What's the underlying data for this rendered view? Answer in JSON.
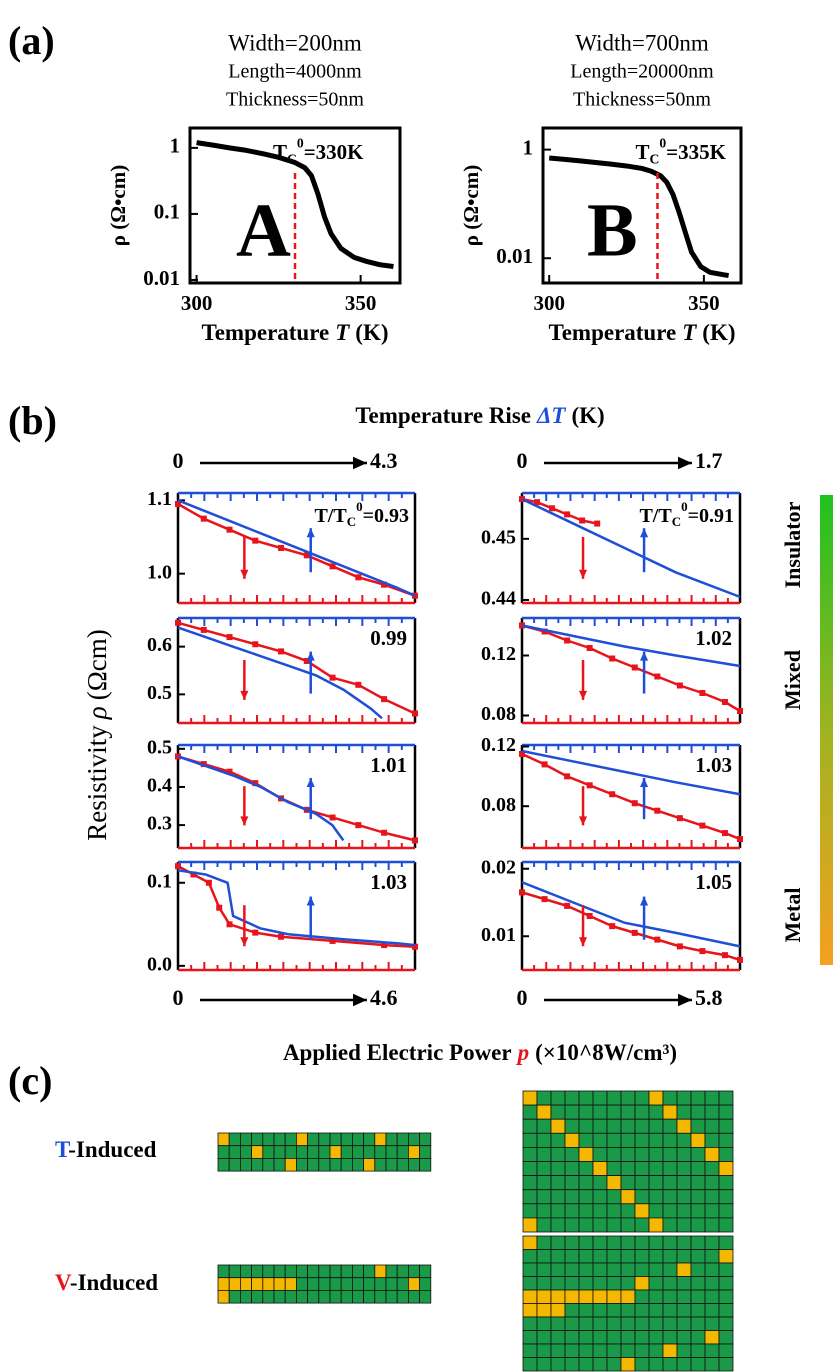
{
  "panel_labels": [
    "(a)",
    "(b)",
    "(c)"
  ],
  "panel_b": {
    "top_axis": {
      "text": "Temperature Rise",
      "symbol": "ΔT",
      "unit": "(K)"
    },
    "y_label": {
      "text": "Resistivity",
      "symbol": "ρ",
      "unit": "(Ωcm)"
    },
    "bottom_axis": {
      "text": "Applied Electric Power",
      "symbol": "p",
      "unit": "(×10^8W/cm³)"
    },
    "phases": [
      "Insulator",
      "Mixed",
      "Metal"
    ]
  },
  "panel_c": {
    "rows": [
      {
        "letter": "T",
        "rest": "-Induced"
      },
      {
        "letter": "V",
        "rest": "-Induced"
      }
    ]
  },
  "chart_data": [
    {
      "type": "line",
      "log_y": true,
      "title_lines": [
        "Width=200nm",
        "Length=4000nm",
        "Thickness=50nm"
      ],
      "x_label": {
        "text": "Temperature",
        "symbol": "T",
        "unit": "(K)"
      },
      "y_label": "ρ (Ω•cm)",
      "letter": "A",
      "vline": 330,
      "annotation": {
        "base": "T",
        "sub": "C",
        "sup": "0",
        "rest": "=330K"
      },
      "xlim": [
        298,
        362
      ],
      "xticks": [
        300,
        350
      ],
      "ylim": [
        0.009,
        2
      ],
      "yticks": [
        0.01,
        0.1,
        1
      ],
      "series": [
        {
          "color": "#000000",
          "x": [
            300,
            305,
            310,
            315,
            320,
            325,
            330,
            333,
            335,
            337,
            339,
            341,
            344,
            348,
            352,
            356,
            360
          ],
          "values": [
            1.2,
            1.1,
            1.0,
            0.92,
            0.82,
            0.72,
            0.6,
            0.5,
            0.38,
            0.2,
            0.09,
            0.05,
            0.03,
            0.022,
            0.019,
            0.017,
            0.016
          ]
        }
      ]
    },
    {
      "type": "line",
      "log_y": true,
      "title_lines": [
        "Width=700nm",
        "Length=20000nm",
        "Thickness=50nm"
      ],
      "x_label": {
        "text": "Temperature",
        "symbol": "T",
        "unit": "(K)"
      },
      "y_label": "ρ (Ω•cm)",
      "letter": "B",
      "vline": 335,
      "annotation": {
        "base": "T",
        "sub": "C",
        "sup": "0",
        "rest": "=335K"
      },
      "xlim": [
        298,
        362
      ],
      "xticks": [
        300,
        350
      ],
      "ylim": [
        0.0035,
        2.5
      ],
      "yticks": [
        0.01,
        1
      ],
      "series": [
        {
          "color": "#000000",
          "x": [
            300,
            305,
            310,
            315,
            320,
            325,
            330,
            333,
            336,
            338,
            340,
            342,
            344,
            346,
            349,
            352,
            356,
            358
          ],
          "values": [
            0.7,
            0.66,
            0.62,
            0.58,
            0.54,
            0.5,
            0.45,
            0.4,
            0.33,
            0.25,
            0.15,
            0.07,
            0.03,
            0.013,
            0.007,
            0.0055,
            0.005,
            0.0048
          ]
        }
      ]
    },
    {
      "type": "line",
      "annotation": {
        "base": "T/T",
        "sub": "C",
        "sup": "0",
        "rest": "=0.93"
      },
      "xlim": [
        0,
        4.6
      ],
      "x2lim": [
        0,
        4.3
      ],
      "ylim": [
        0.96,
        1.11
      ],
      "yticks": [
        {
          "value": 1,
          "label": "1.0"
        },
        1.1
      ],
      "series": [
        {
          "color": "#e8141c",
          "x": [
            0,
            0.5,
            1,
            1.5,
            2,
            2.5,
            3,
            3.5,
            4,
            4.6
          ],
          "values": [
            1.095,
            1.075,
            1.06,
            1.045,
            1.035,
            1.025,
            1.01,
            0.995,
            0.985,
            0.97
          ]
        },
        {
          "color": "#1f4fd6",
          "axis": "x2",
          "x": [
            0,
            0.5,
            1,
            1.5,
            2,
            2.5,
            3,
            3.5,
            4,
            4.3
          ],
          "values": [
            1.1,
            1.085,
            1.07,
            1.055,
            1.04,
            1.025,
            1.01,
            0.995,
            0.98,
            0.97
          ]
        }
      ]
    },
    {
      "type": "line",
      "annotation": "0.99",
      "xlim": [
        0,
        4.6
      ],
      "x2lim": [
        0,
        4.3
      ],
      "ylim": [
        0.44,
        0.66
      ],
      "yticks": [
        0.5,
        0.6
      ],
      "series": [
        {
          "color": "#e8141c",
          "x": [
            0,
            0.5,
            1,
            1.5,
            2,
            2.5,
            3,
            3.5,
            4,
            4.6
          ],
          "values": [
            0.65,
            0.635,
            0.62,
            0.605,
            0.59,
            0.57,
            0.535,
            0.52,
            0.49,
            0.46
          ]
        },
        {
          "color": "#1f4fd6",
          "axis": "x2",
          "x": [
            0,
            0.5,
            1,
            1.5,
            2,
            2.5,
            3,
            3.5,
            3.7
          ],
          "values": [
            0.64,
            0.62,
            0.6,
            0.58,
            0.56,
            0.54,
            0.51,
            0.47,
            0.45
          ]
        }
      ]
    },
    {
      "type": "line",
      "annotation": "1.01",
      "xlim": [
        0,
        4.6
      ],
      "x2lim": [
        0,
        4.3
      ],
      "ylim": [
        0.24,
        0.51
      ],
      "yticks": [
        0.3,
        0.4,
        0.5
      ],
      "series": [
        {
          "color": "#e8141c",
          "x": [
            0,
            0.5,
            1,
            1.5,
            2,
            2.5,
            3,
            3.5,
            4,
            4.6
          ],
          "values": [
            0.48,
            0.46,
            0.44,
            0.41,
            0.37,
            0.34,
            0.32,
            0.3,
            0.28,
            0.26
          ]
        },
        {
          "color": "#1f4fd6",
          "axis": "x2",
          "x": [
            0,
            0.5,
            1,
            1.5,
            2,
            2.5,
            2.8,
            3.0
          ],
          "values": [
            0.48,
            0.455,
            0.43,
            0.4,
            0.36,
            0.33,
            0.3,
            0.26
          ]
        }
      ]
    },
    {
      "type": "line",
      "annotation": "1.03",
      "xlim": [
        0,
        4.6
      ],
      "x2lim": [
        0,
        4.3
      ],
      "ylim": [
        -0.005,
        0.125
      ],
      "yticks": [
        {
          "value": 0,
          "label": "0.0"
        },
        0.1
      ],
      "series": [
        {
          "color": "#e8141c",
          "x": [
            0,
            0.3,
            0.6,
            0.8,
            1,
            1.5,
            2,
            3,
            4,
            4.6
          ],
          "values": [
            0.12,
            0.11,
            0.1,
            0.07,
            0.05,
            0.04,
            0.035,
            0.03,
            0.025,
            0.023
          ]
        },
        {
          "color": "#1f4fd6",
          "axis": "x2",
          "x": [
            0,
            0.5,
            0.9,
            1.0,
            1.5,
            2,
            3,
            4,
            4.3
          ],
          "values": [
            0.115,
            0.11,
            0.1,
            0.06,
            0.045,
            0.038,
            0.032,
            0.027,
            0.025
          ]
        }
      ]
    },
    {
      "type": "line",
      "annotation": {
        "base": "T/T",
        "sub": "C",
        "sup": "0",
        "rest": "=0.91"
      },
      "xlim": [
        0,
        5.8
      ],
      "x2lim": [
        0,
        1.7
      ],
      "ylim": [
        0.4395,
        0.4575
      ],
      "yticks": [
        0.44,
        0.45
      ],
      "series": [
        {
          "color": "#e8141c",
          "x": [
            0,
            0.4,
            0.8,
            1.2,
            1.6,
            2.0
          ],
          "values": [
            0.4565,
            0.456,
            0.455,
            0.454,
            0.453,
            0.4525
          ]
        },
        {
          "color": "#1f4fd6",
          "axis": "x2",
          "x": [
            0,
            0.4,
            0.8,
            1.2,
            1.7
          ],
          "values": [
            0.4565,
            0.4525,
            0.4485,
            0.4445,
            0.4405
          ]
        }
      ]
    },
    {
      "type": "line",
      "annotation": "1.02",
      "xlim": [
        0,
        5.8
      ],
      "x2lim": [
        0,
        1.7
      ],
      "ylim": [
        0.075,
        0.145
      ],
      "yticks": [
        0.08,
        0.12
      ],
      "series": [
        {
          "color": "#e8141c",
          "x": [
            0,
            0.6,
            1.2,
            1.8,
            2.4,
            3,
            3.6,
            4.2,
            4.8,
            5.4,
            5.8
          ],
          "values": [
            0.14,
            0.136,
            0.13,
            0.125,
            0.118,
            0.112,
            0.106,
            0.1,
            0.095,
            0.089,
            0.083
          ]
        },
        {
          "color": "#1f4fd6",
          "axis": "x2",
          "x": [
            0,
            0.4,
            0.8,
            1.2,
            1.7
          ],
          "values": [
            0.14,
            0.133,
            0.126,
            0.12,
            0.113
          ]
        }
      ]
    },
    {
      "type": "line",
      "annotation": "1.03",
      "xlim": [
        0,
        5.8
      ],
      "x2lim": [
        0,
        1.7
      ],
      "ylim": [
        0.052,
        0.121
      ],
      "yticks": [
        0.08,
        0.12
      ],
      "series": [
        {
          "color": "#e8141c",
          "x": [
            0,
            0.6,
            1.2,
            1.8,
            2.4,
            3,
            3.6,
            4.2,
            4.8,
            5.4,
            5.8
          ],
          "values": [
            0.115,
            0.108,
            0.1,
            0.094,
            0.088,
            0.082,
            0.077,
            0.072,
            0.067,
            0.062,
            0.058
          ]
        },
        {
          "color": "#1f4fd6",
          "axis": "x2",
          "x": [
            0,
            0.4,
            0.8,
            1.2,
            1.7
          ],
          "values": [
            0.117,
            0.11,
            0.103,
            0.096,
            0.088
          ]
        }
      ]
    },
    {
      "type": "line",
      "annotation": "1.05",
      "xlim": [
        0,
        5.8
      ],
      "x2lim": [
        0,
        1.7
      ],
      "ylim": [
        0.005,
        0.021
      ],
      "yticks": [
        0.01,
        0.02
      ],
      "series": [
        {
          "color": "#e8141c",
          "x": [
            0,
            0.6,
            1.2,
            1.8,
            2.4,
            3,
            3.6,
            4.2,
            4.8,
            5.4,
            5.8
          ],
          "values": [
            0.0165,
            0.0155,
            0.0145,
            0.013,
            0.0115,
            0.0105,
            0.0095,
            0.0085,
            0.0078,
            0.0072,
            0.0065
          ]
        },
        {
          "color": "#1f4fd6",
          "axis": "x2",
          "x": [
            0,
            0.4,
            0.8,
            1.2,
            1.7
          ],
          "values": [
            0.018,
            0.015,
            0.012,
            0.0105,
            0.0085
          ]
        }
      ]
    }
  ]
}
